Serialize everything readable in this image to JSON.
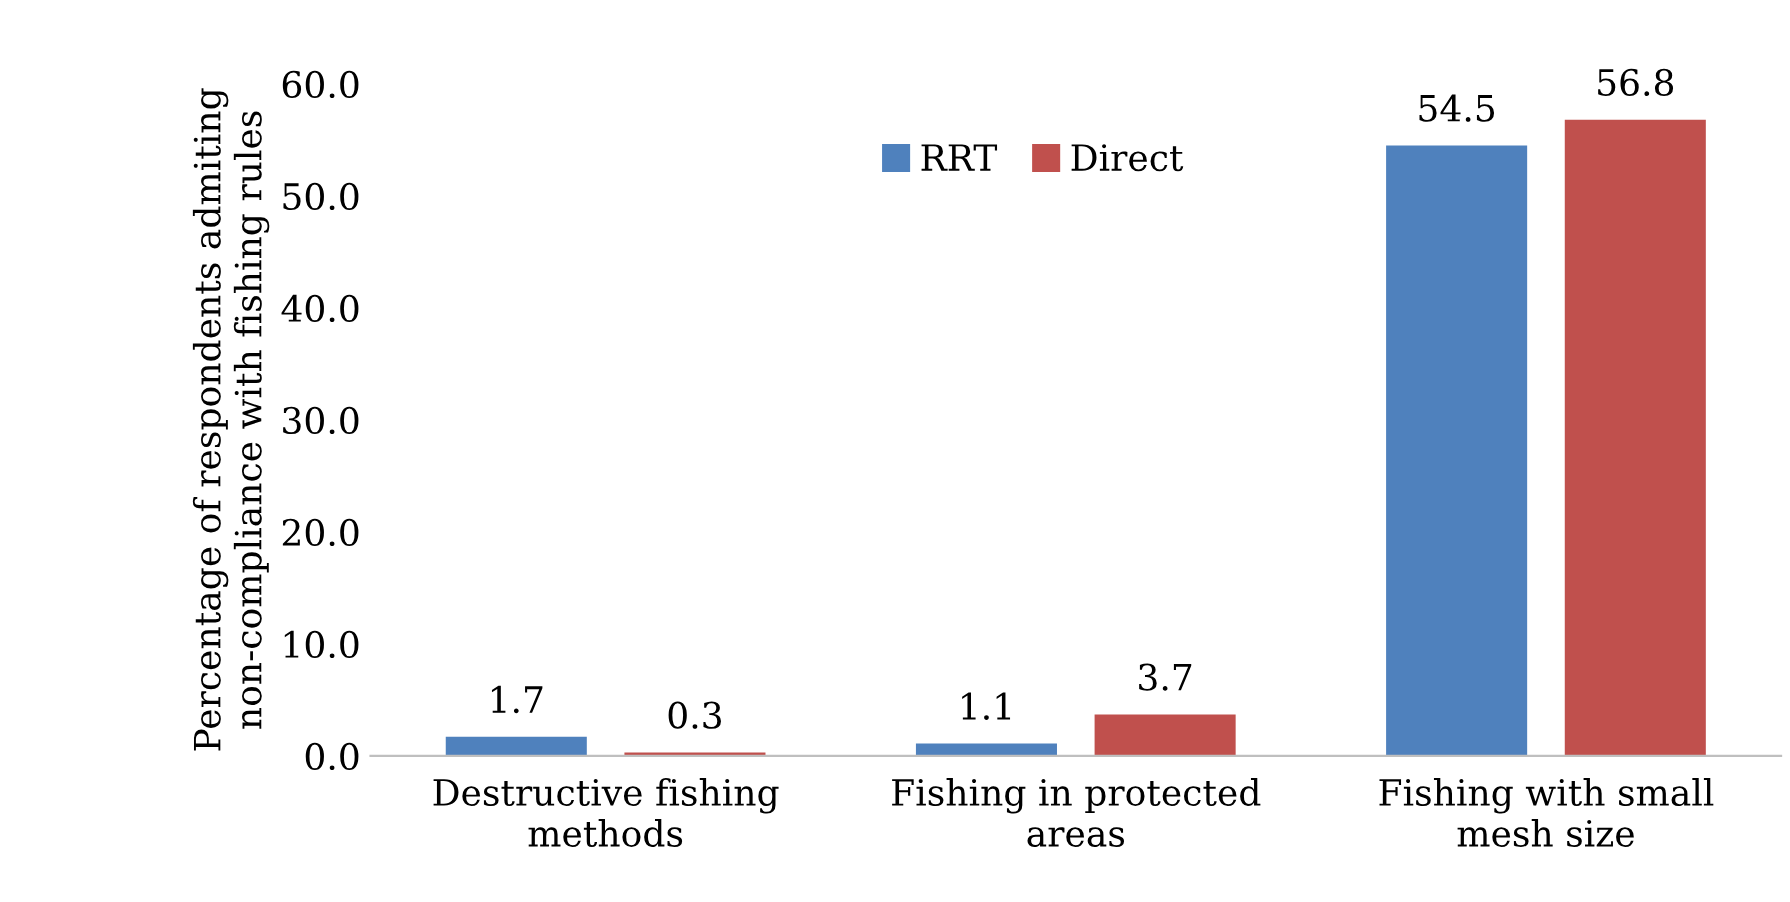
{
  "chart_data": {
    "type": "bar",
    "ylabel": "Percentage of respondents admiting non-compliance with fishing rules",
    "categories": [
      "Destructive fishing\nmethods",
      "Fishing in protected\nareas",
      "Fishing with small\nmesh size"
    ],
    "series": [
      {
        "name": "RRT",
        "color": "#4f81bd",
        "values": [
          1.7,
          1.1,
          54.5
        ]
      },
      {
        "name": "Direct",
        "color": "#c0504d",
        "values": [
          0.3,
          3.7,
          56.8
        ]
      }
    ],
    "ylim": [
      0,
      60
    ],
    "yticks": [
      {
        "value": 0,
        "label": "0.0"
      },
      {
        "value": 10,
        "label": "10.0"
      },
      {
        "value": 20,
        "label": "20.0"
      },
      {
        "value": 30,
        "label": "30.0"
      },
      {
        "value": 40,
        "label": "40.0"
      },
      {
        "value": 50,
        "label": "50.0"
      },
      {
        "value": 60,
        "label": "60.0"
      }
    ],
    "data_labels": true,
    "legend": "top",
    "grid": false
  }
}
